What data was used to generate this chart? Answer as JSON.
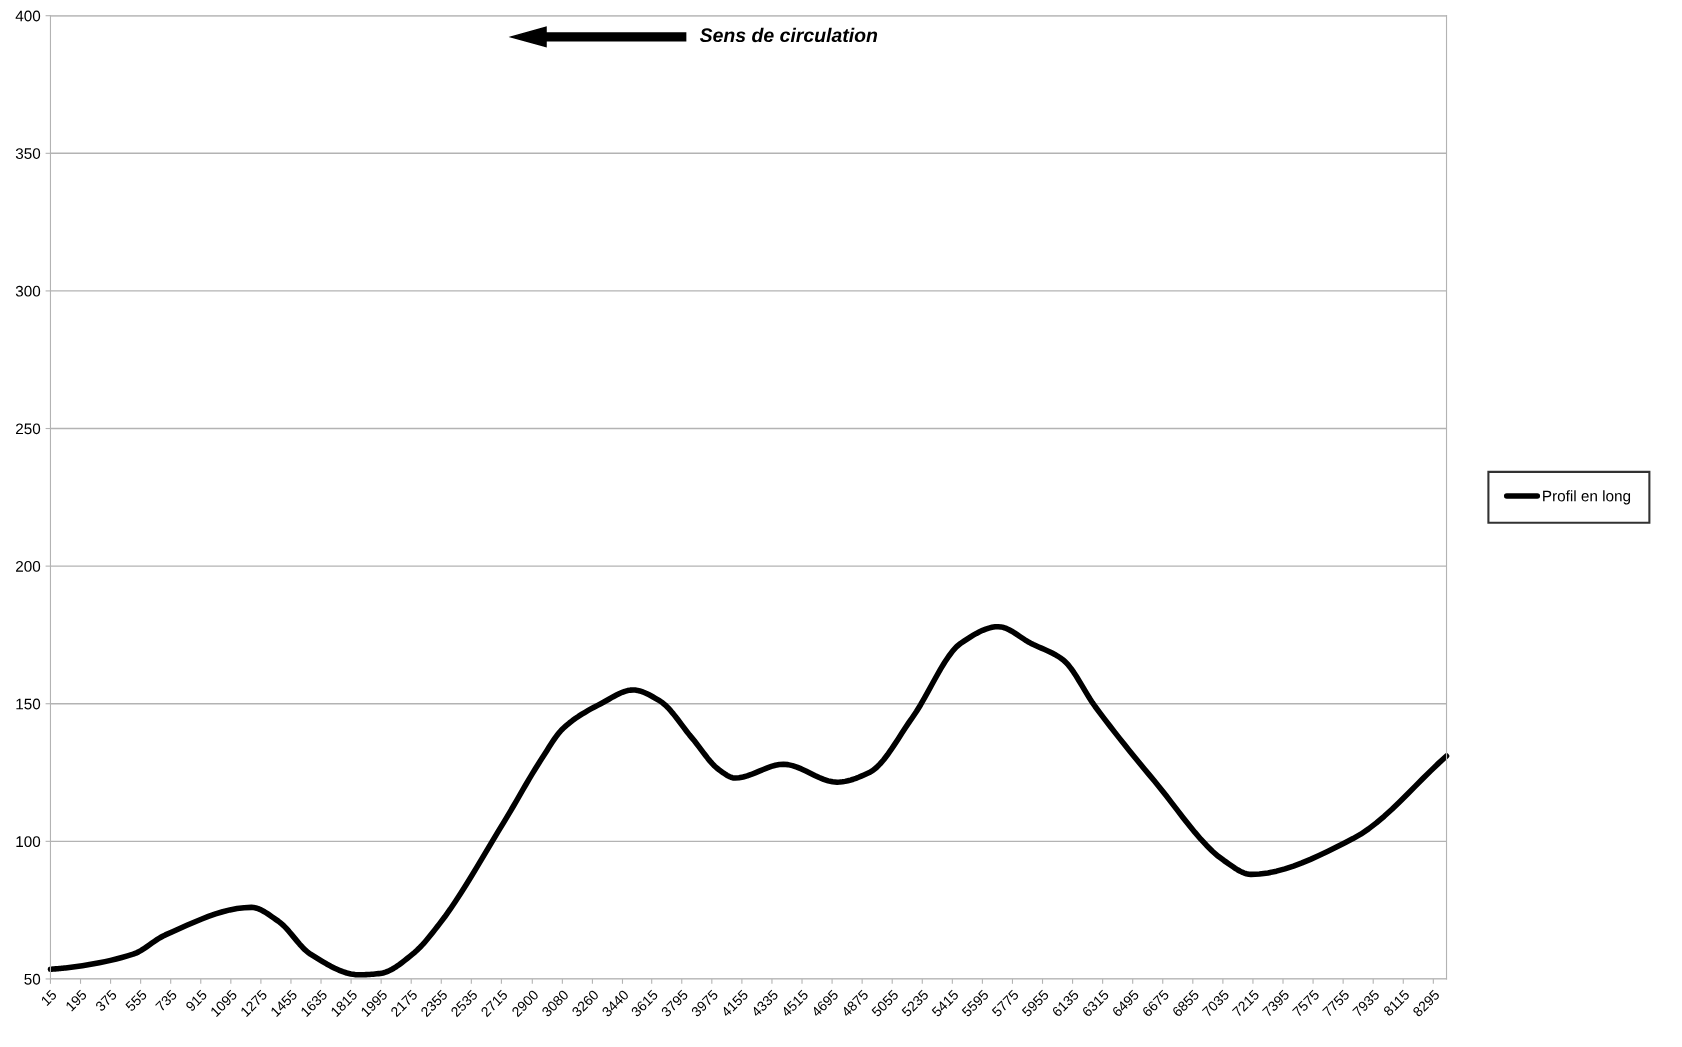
{
  "chart_data": {
    "type": "line",
    "x": [
      15,
      105,
      510,
      703,
      1218,
      1379,
      1572,
      1862,
      1990,
      2183,
      2344,
      2730,
      2956,
      3084,
      3310,
      3503,
      3664,
      3857,
      4018,
      4114,
      4404,
      4725,
      4918,
      5176,
      5466,
      5690,
      5884,
      6077,
      6270,
      6624,
      7042,
      7203,
      7814,
      8374
    ],
    "series": [
      {
        "name": "Profil en long",
        "color": "#000000",
        "values": [
          53.5,
          54,
          59,
          66,
          76,
          71,
          59,
          51.5,
          52,
          59,
          70,
          107,
          130,
          141,
          150,
          155,
          151,
          137.5,
          126,
          123,
          128,
          121.5,
          125,
          145,
          172,
          178,
          172,
          166,
          149,
          122,
          93,
          88,
          101,
          131
        ]
      }
    ],
    "xlim": [
      15,
      8374
    ],
    "xticks": [
      15,
      195,
      375,
      555,
      735,
      915,
      1095,
      1275,
      1455,
      1635,
      1815,
      1995,
      2175,
      2355,
      2535,
      2715,
      2900,
      3080,
      3260,
      3440,
      3615,
      3795,
      3975,
      4155,
      4335,
      4515,
      4695,
      4875,
      5055,
      5235,
      5415,
      5595,
      5775,
      5955,
      6135,
      6315,
      6495,
      6675,
      6855,
      7035,
      7215,
      7395,
      7575,
      7755,
      7935,
      8115,
      8295
    ],
    "ylim": [
      50,
      400
    ],
    "yticks": [
      50,
      100,
      150,
      200,
      250,
      300,
      350,
      400
    ],
    "grid": "y",
    "legend": "right",
    "marker": "none",
    "line_style": "solid",
    "annotations": [
      "Sens de circulation"
    ]
  }
}
